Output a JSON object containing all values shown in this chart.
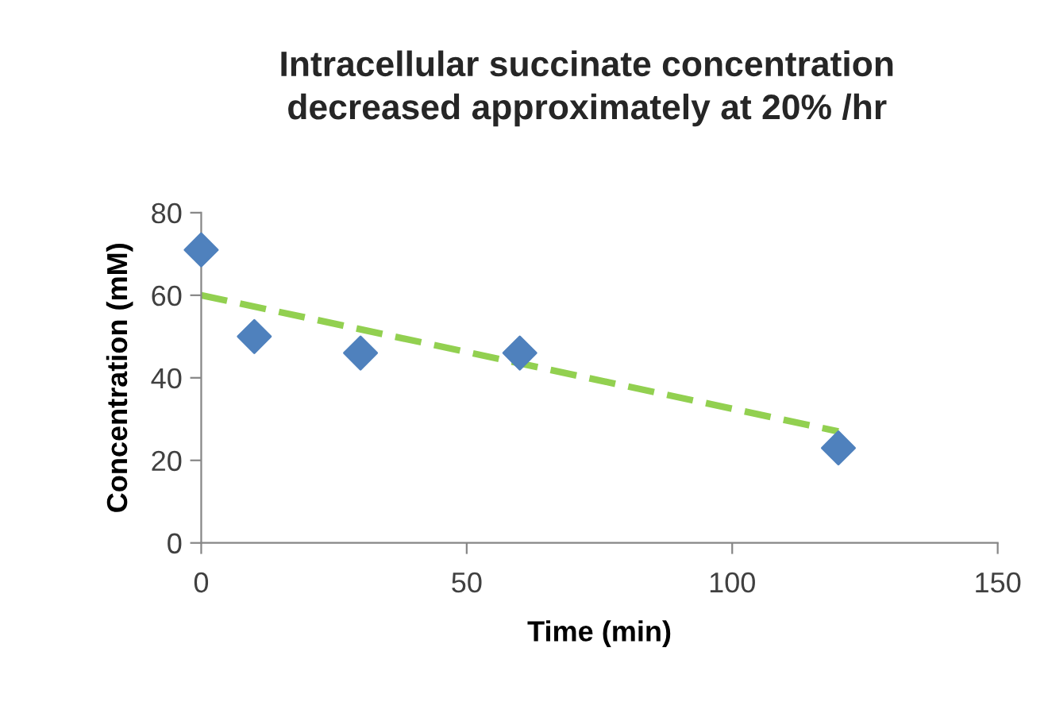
{
  "chart_data": {
    "type": "scatter",
    "title": "Intracellular succinate concentration\ndecreased approximately at 20% /hr",
    "xlabel": "Time (min)",
    "ylabel": "Concentration (mM)",
    "xlim": [
      0,
      150
    ],
    "xticks": [
      0,
      50,
      100,
      150
    ],
    "ylim": [
      0,
      80
    ],
    "yticks": [
      0,
      20,
      40,
      60,
      80
    ],
    "grid": false,
    "legend": false,
    "series": [
      {
        "color": "#4f81bd",
        "marker": "diamond",
        "x": [
          0,
          10,
          30,
          60,
          120
        ],
        "values": [
          71,
          50,
          46,
          46,
          23
        ]
      },
      {
        "type": "line",
        "color": "#92d050",
        "line_style": "dashed",
        "x": [
          0,
          120
        ],
        "values": [
          60,
          27
        ]
      }
    ]
  }
}
